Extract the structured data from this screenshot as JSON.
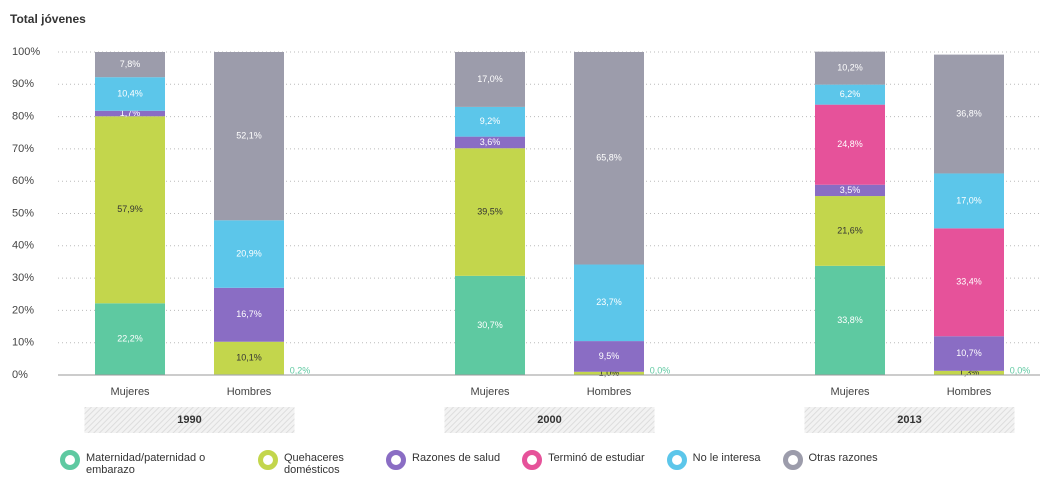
{
  "chart_data": {
    "type": "stacked_bar",
    "title": "Total jóvenes",
    "categories": [
      "Mujeres",
      "Hombres",
      "Mujeres",
      "Hombres",
      "Mujeres",
      "Hombres"
    ],
    "groups": [
      "1990",
      "2000",
      "2013"
    ],
    "ylim": [
      0,
      100
    ],
    "yticks": [
      {
        "value": 0,
        "label": "0%"
      },
      {
        "value": 10,
        "label": "10%"
      },
      {
        "value": 20,
        "label": "20%"
      },
      {
        "value": 30,
        "label": "30%"
      },
      {
        "value": 40,
        "label": "40%"
      },
      {
        "value": 50,
        "label": "50%"
      },
      {
        "value": 60,
        "label": "60%"
      },
      {
        "value": 70,
        "label": "70%"
      },
      {
        "value": 80,
        "label": "80%"
      },
      {
        "value": 90,
        "label": "90%"
      },
      {
        "value": 100,
        "label": "100%"
      }
    ],
    "grid": true,
    "series": [
      {
        "name": "Maternidad/paternidad o embarazo",
        "color": "#5ec9a1",
        "values": [
          22.2,
          0.2,
          30.7,
          0.0,
          33.8,
          0.0
        ],
        "value_labels": [
          "22,2%",
          "0,2%",
          "30,7%",
          "0,0%",
          "33,8%",
          "0,0%"
        ]
      },
      {
        "name": "Quehaceres domésticos",
        "color": "#c3d64c",
        "values": [
          57.9,
          10.1,
          39.5,
          1.0,
          21.6,
          1.3
        ],
        "value_labels": [
          "57,9%",
          "10,1%",
          "39,5%",
          "1,0%",
          "21,6%",
          "1,3%"
        ]
      },
      {
        "name": "Razones de salud",
        "color": "#8a6dc4",
        "values": [
          1.7,
          16.7,
          3.6,
          9.5,
          3.5,
          10.7
        ],
        "value_labels": [
          "1,7%",
          "16,7%",
          "3,6%",
          "9,5%",
          "3,5%",
          "10,7%"
        ]
      },
      {
        "name": "Terminó de estudiar",
        "color": "#e6529a",
        "values": [
          null,
          null,
          null,
          null,
          24.8,
          33.4
        ],
        "value_labels": [
          null,
          null,
          null,
          null,
          "24,8%",
          "33,4%"
        ]
      },
      {
        "name": "No le interesa",
        "color": "#5cc6ea",
        "values": [
          10.4,
          20.9,
          9.2,
          23.7,
          6.2,
          17.0
        ],
        "value_labels": [
          "10,4%",
          "20,9%",
          "9,2%",
          "23,7%",
          "6,2%",
          "17,0%"
        ]
      },
      {
        "name": "Otras razones",
        "color": "#9c9cab",
        "values": [
          7.8,
          52.1,
          17.0,
          65.8,
          10.2,
          36.8
        ],
        "value_labels": [
          "7,8%",
          "52,1%",
          "17,0%",
          "65,8%",
          "10,2%",
          "36,8%"
        ]
      }
    ]
  }
}
